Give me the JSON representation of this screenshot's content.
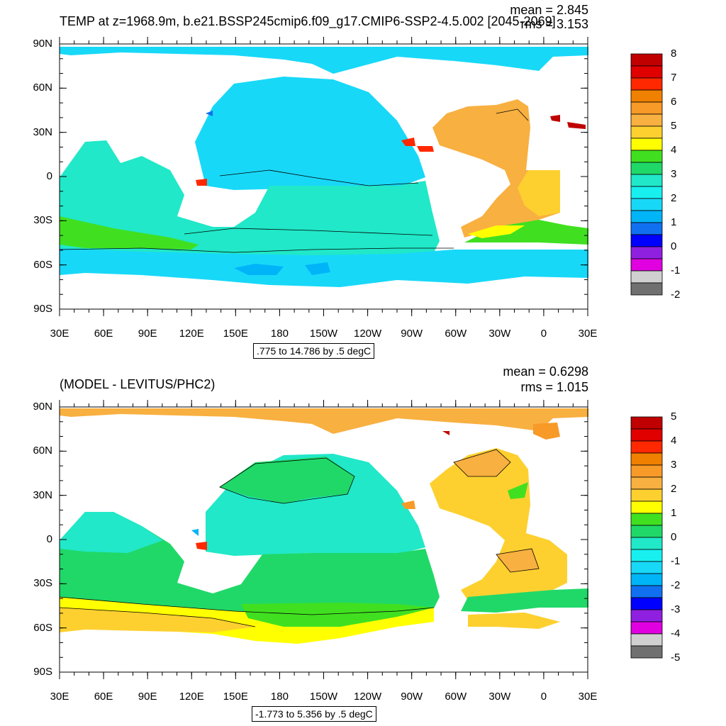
{
  "panels": [
    {
      "title": "TEMP at z=1968.9m, b.e21.BSSP245cmip6.f09_g17.CMIP6-SSP2-4.5.002 [2045-2069]",
      "mean_label": "mean = 2.845",
      "rms_label": "rms = 3.153",
      "range_label": ".775 to 14.786 by .5 degC",
      "lat_labels": [
        "90N",
        "60N",
        "30N",
        "0",
        "30S",
        "60S",
        "90S"
      ],
      "lon_labels": [
        "30E",
        "60E",
        "90E",
        "120E",
        "150E",
        "180",
        "150W",
        "120W",
        "90W",
        "60W",
        "30W",
        "0",
        "30E"
      ],
      "colorbar_labels": [
        "8",
        "7",
        "6",
        "5",
        "4",
        "3",
        "2",
        "1",
        "0",
        "-1",
        "-2"
      ],
      "colorbar_colors": [
        "#c00000",
        "#e00000",
        "#ff2800",
        "#f08000",
        "#f79a28",
        "#f8b040",
        "#fdd030",
        "#ffff00",
        "#40e020",
        "#20d868",
        "#20e8c8",
        "#18f0f0",
        "#18d8f8",
        "#00b4f8",
        "#1070f0",
        "#0000ff",
        "#9020e0",
        "#e000e0",
        "#d0d0d0",
        "#707070"
      ]
    },
    {
      "title": "(MODEL - LEVITUS/PHC2)",
      "mean_label": "mean = 0.6298",
      "rms_label": "rms = 1.015",
      "range_label": "-1.773 to 5.356 by .5 degC",
      "lat_labels": [
        "90N",
        "60N",
        "30N",
        "0",
        "30S",
        "60S",
        "90S"
      ],
      "lon_labels": [
        "30E",
        "60E",
        "90E",
        "120E",
        "150E",
        "180",
        "150W",
        "120W",
        "90W",
        "60W",
        "30W",
        "0",
        "30E"
      ],
      "colorbar_labels": [
        "5",
        "4",
        "3",
        "2",
        "1",
        "0",
        "-1",
        "-2",
        "-3",
        "-4",
        "-5"
      ],
      "colorbar_colors": [
        "#c00000",
        "#e00000",
        "#ff2800",
        "#f08000",
        "#f79a28",
        "#f8b040",
        "#fdd030",
        "#ffff00",
        "#40e020",
        "#20d868",
        "#20e8c8",
        "#18f0f0",
        "#18d8f8",
        "#00b4f8",
        "#1070f0",
        "#0000ff",
        "#9020e0",
        "#e000e0",
        "#d0d0d0",
        "#707070"
      ]
    }
  ]
}
